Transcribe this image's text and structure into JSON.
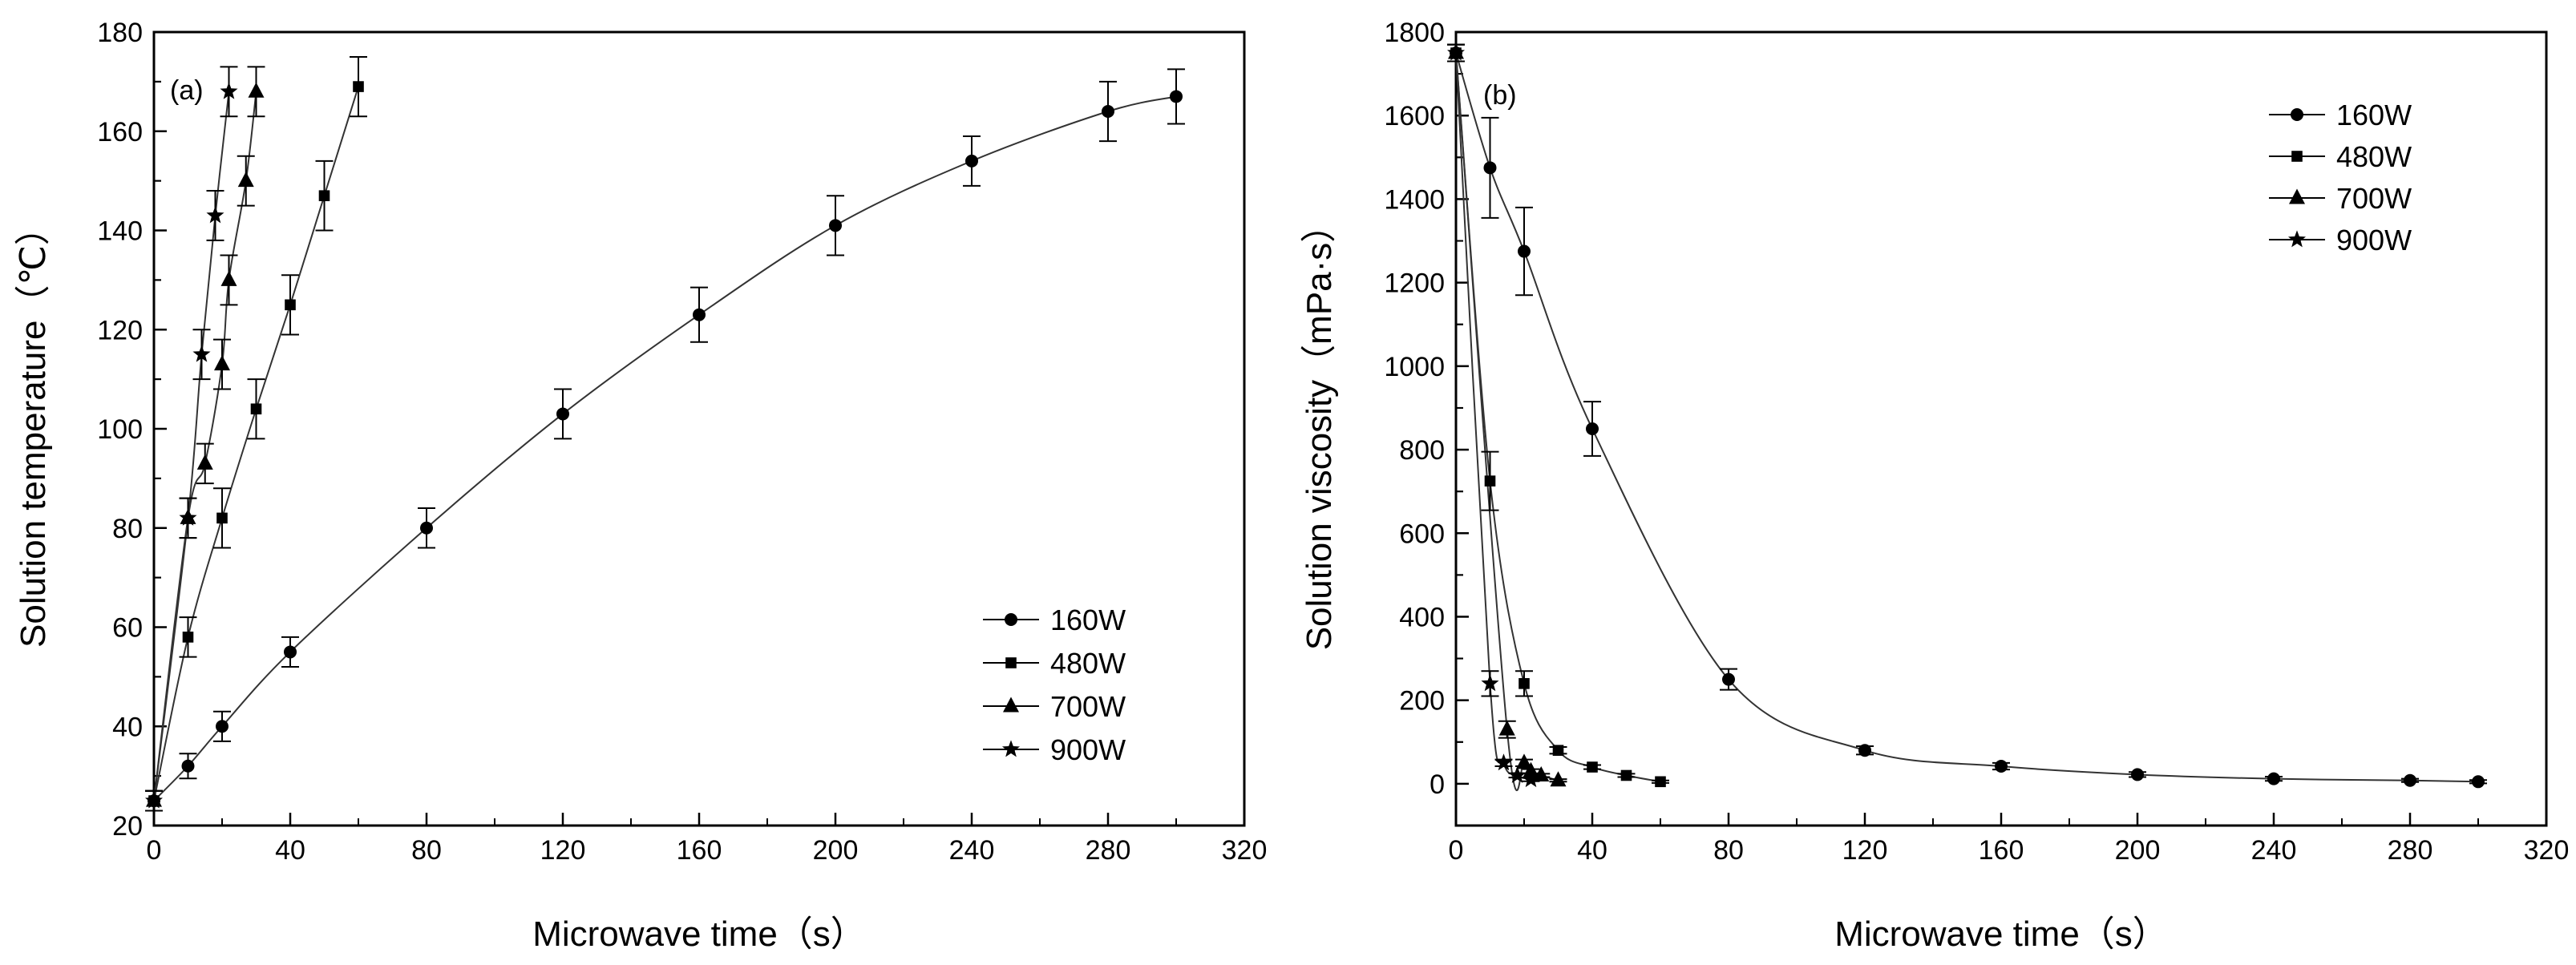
{
  "chart_data": [
    {
      "type": "line",
      "panel_label": "(a)",
      "xlabel": "Microwave time（s）",
      "ylabel": "Solution temperature（℃）",
      "xlim": [
        0,
        320
      ],
      "ylim": [
        20,
        180
      ],
      "xticks": [
        0,
        40,
        80,
        120,
        160,
        200,
        240,
        280,
        320
      ],
      "yticks": [
        20,
        40,
        60,
        80,
        100,
        120,
        140,
        160,
        180
      ],
      "legend_position": "bottom-right",
      "series": [
        {
          "name": "160W",
          "marker": "circle",
          "points": [
            [
              0,
              25
            ],
            [
              10,
              32
            ],
            [
              20,
              40
            ],
            [
              40,
              55
            ],
            [
              80,
              80
            ],
            [
              120,
              103
            ],
            [
              160,
              123
            ],
            [
              200,
              141
            ],
            [
              240,
              154
            ],
            [
              280,
              164
            ],
            [
              300,
              167
            ]
          ],
          "errors": [
            2,
            2.5,
            3,
            3,
            4,
            5,
            5.5,
            6,
            5,
            6,
            5.5
          ]
        },
        {
          "name": "480W",
          "marker": "square",
          "points": [
            [
              0,
              25
            ],
            [
              10,
              58
            ],
            [
              20,
              82
            ],
            [
              30,
              104
            ],
            [
              40,
              125
            ],
            [
              50,
              147
            ],
            [
              60,
              169
            ]
          ],
          "errors": [
            2,
            4,
            6,
            6,
            6,
            7,
            6
          ]
        },
        {
          "name": "700W",
          "marker": "triangle",
          "points": [
            [
              0,
              25
            ],
            [
              10,
              82
            ],
            [
              15,
              93
            ],
            [
              20,
              113
            ],
            [
              22,
              130
            ],
            [
              27,
              150
            ],
            [
              30,
              168
            ]
          ],
          "errors": [
            2,
            4,
            4,
            5,
            5,
            5,
            5
          ]
        },
        {
          "name": "900W",
          "marker": "star",
          "points": [
            [
              0,
              25
            ],
            [
              10,
              82
            ],
            [
              14,
              115
            ],
            [
              18,
              143
            ],
            [
              22,
              168
            ]
          ],
          "errors": [
            2,
            4,
            5,
            5,
            5
          ]
        }
      ]
    },
    {
      "type": "line",
      "panel_label": "(b)",
      "xlabel": "Microwave time（s）",
      "ylabel": "Solution viscosity（mPa·s）",
      "xlim": [
        0,
        320
      ],
      "ylim": [
        -100,
        1800
      ],
      "xticks": [
        0,
        40,
        80,
        120,
        160,
        200,
        240,
        280,
        320
      ],
      "yticks": [
        0,
        200,
        400,
        600,
        800,
        1000,
        1200,
        1400,
        1600,
        1800
      ],
      "legend_position": "top-right",
      "series": [
        {
          "name": "160W",
          "marker": "circle",
          "points": [
            [
              0,
              1750
            ],
            [
              10,
              1475
            ],
            [
              20,
              1275
            ],
            [
              40,
              850
            ],
            [
              80,
              250
            ],
            [
              120,
              80
            ],
            [
              160,
              42
            ],
            [
              200,
              22
            ],
            [
              240,
              12
            ],
            [
              280,
              8
            ],
            [
              300,
              5
            ]
          ],
          "errors": [
            20,
            120,
            105,
            65,
            25,
            10,
            8,
            6,
            5,
            4,
            4
          ]
        },
        {
          "name": "480W",
          "marker": "square",
          "points": [
            [
              0,
              1750
            ],
            [
              10,
              725
            ],
            [
              20,
              240
            ],
            [
              30,
              80
            ],
            [
              40,
              40
            ],
            [
              50,
              20
            ],
            [
              60,
              5
            ]
          ],
          "errors": [
            20,
            70,
            30,
            8,
            5,
            4,
            3
          ]
        },
        {
          "name": "700W",
          "marker": "triangle",
          "points": [
            [
              0,
              1750
            ],
            [
              15,
              130
            ],
            [
              20,
              50
            ],
            [
              22,
              30
            ],
            [
              25,
              20
            ],
            [
              30,
              8
            ]
          ],
          "errors": [
            20,
            20,
            8,
            5,
            4,
            3
          ]
        },
        {
          "name": "900W",
          "marker": "star",
          "points": [
            [
              0,
              1750
            ],
            [
              10,
              240
            ],
            [
              14,
              50
            ],
            [
              18,
              20
            ],
            [
              22,
              10
            ]
          ],
          "errors": [
            20,
            30,
            8,
            5,
            4
          ]
        }
      ]
    }
  ]
}
